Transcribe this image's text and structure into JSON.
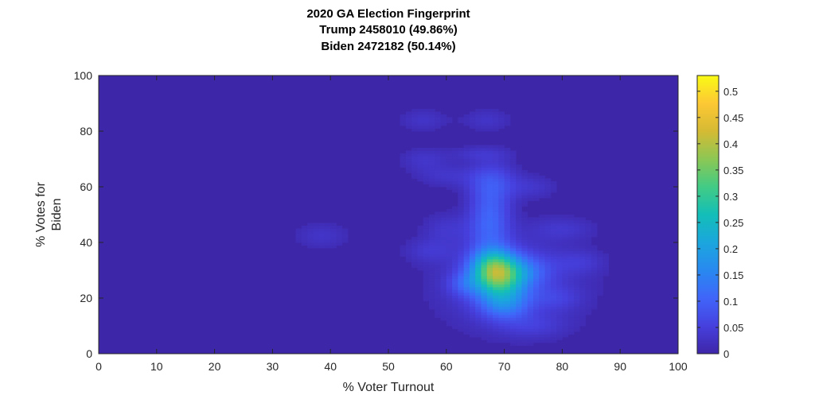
{
  "chart_data": {
    "type": "heatmap",
    "title": [
      "2020 GA Election Fingerprint",
      "Trump 2458010 (49.86%)",
      "Biden 2472182 (50.14%)"
    ],
    "xlabel": "% Voter Turnout",
    "ylabel": [
      "% Votes for",
      "Biden"
    ],
    "xlim": [
      0,
      100
    ],
    "ylim": [
      0,
      100
    ],
    "xticks": [
      0,
      10,
      20,
      30,
      40,
      50,
      60,
      70,
      80,
      90,
      100
    ],
    "yticks": [
      0,
      20,
      40,
      60,
      80,
      100
    ],
    "colormap": "parula",
    "colorbar": {
      "range": [
        0,
        0.53
      ],
      "ticks": [
        0,
        0.05,
        0.1,
        0.15,
        0.2,
        0.25,
        0.3,
        0.35,
        0.4,
        0.45,
        0.5
      ]
    },
    "background_value": 0,
    "peak": {
      "x": 69,
      "y": 27,
      "value": 0.53
    },
    "blobs": [
      {
        "x": 69,
        "y": 28,
        "sx": 3.2,
        "sy": 5,
        "amp": 0.3
      },
      {
        "x": 68,
        "y": 33,
        "sx": 2.5,
        "sy": 4,
        "amp": 0.1
      },
      {
        "x": 70,
        "y": 18,
        "sx": 3,
        "sy": 4,
        "amp": 0.11
      },
      {
        "x": 67.5,
        "y": 48,
        "sx": 2.5,
        "sy": 9,
        "amp": 0.1
      },
      {
        "x": 68,
        "y": 62,
        "sx": 3,
        "sy": 5,
        "amp": 0.06
      },
      {
        "x": 71,
        "y": 25,
        "sx": 9,
        "sy": 12,
        "amp": 0.05
      },
      {
        "x": 74.5,
        "y": 30,
        "sx": 3,
        "sy": 4,
        "amp": 0.05
      },
      {
        "x": 63,
        "y": 25,
        "sx": 2,
        "sy": 3,
        "amp": 0.05
      },
      {
        "x": 60,
        "y": 45,
        "sx": 3,
        "sy": 4,
        "amp": 0.03
      },
      {
        "x": 66,
        "y": 72,
        "sx": 4,
        "sy": 2,
        "amp": 0.03
      },
      {
        "x": 38.5,
        "y": 42.5,
        "sx": 3.5,
        "sy": 3.5,
        "amp": 0.03
      },
      {
        "x": 56,
        "y": 84,
        "sx": 3,
        "sy": 3,
        "amp": 0.03
      },
      {
        "x": 67,
        "y": 84,
        "sx": 3,
        "sy": 3,
        "amp": 0.03
      },
      {
        "x": 56,
        "y": 70,
        "sx": 3,
        "sy": 3,
        "amp": 0.03
      },
      {
        "x": 60,
        "y": 64,
        "sx": 4,
        "sy": 3,
        "amp": 0.03
      },
      {
        "x": 80,
        "y": 45,
        "sx": 4,
        "sy": 3,
        "amp": 0.03
      },
      {
        "x": 83,
        "y": 33,
        "sx": 3,
        "sy": 3,
        "amp": 0.03
      },
      {
        "x": 75,
        "y": 10,
        "sx": 4,
        "sy": 3,
        "amp": 0.03
      },
      {
        "x": 57,
        "y": 37,
        "sx": 3,
        "sy": 3,
        "amp": 0.03
      },
      {
        "x": 79,
        "y": 20,
        "sx": 3,
        "sy": 3,
        "amp": 0.03
      },
      {
        "x": 75,
        "y": 60,
        "sx": 3,
        "sy": 3,
        "amp": 0.03
      }
    ]
  }
}
